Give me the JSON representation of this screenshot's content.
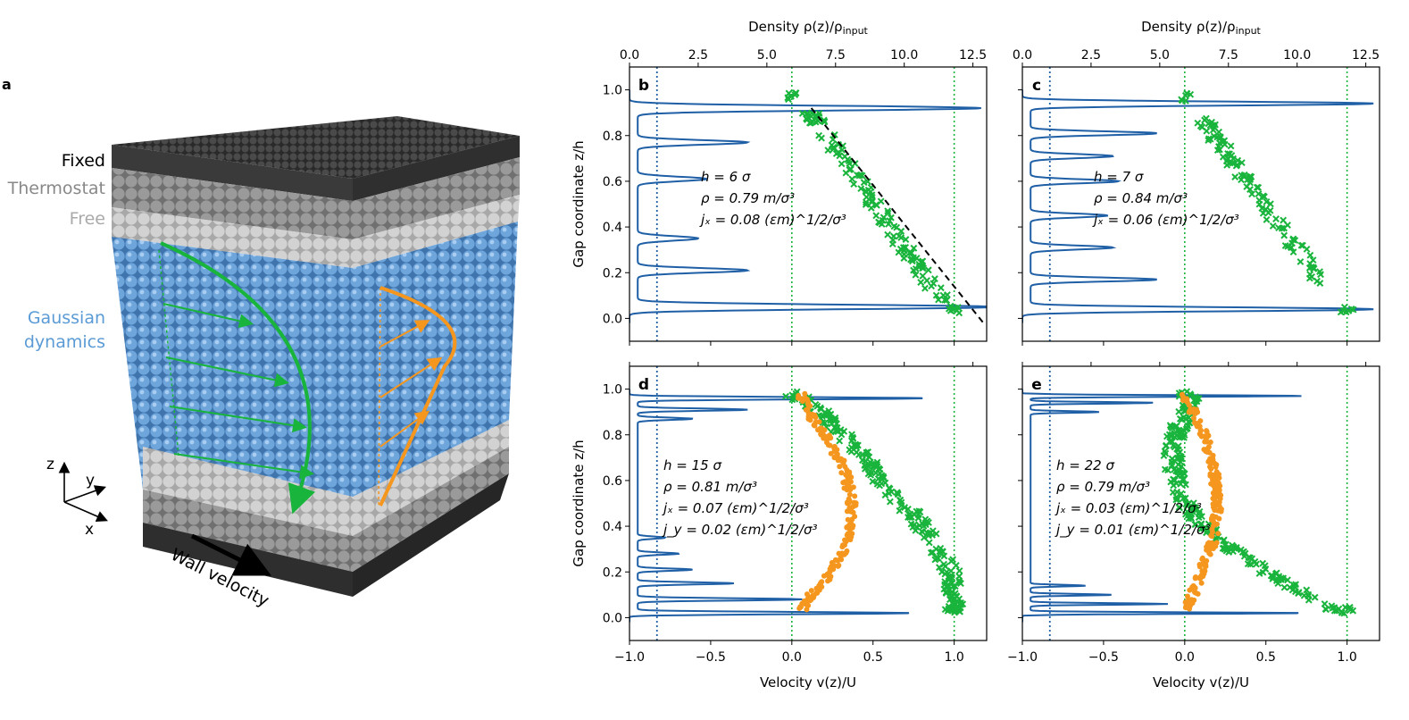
{
  "panel_a": {
    "label": "a",
    "layers": {
      "fixed": "Fixed",
      "thermostat": "Thermostat",
      "free": "Free",
      "gaussian_1": "Gaussian",
      "gaussian_2": "dynamics"
    },
    "axes": {
      "z": "z",
      "y": "y",
      "x": "x"
    },
    "wall_velocity": "Wall velocity"
  },
  "colors": {
    "blue_line": "#1f5fa6",
    "green": "#19b43c",
    "orange": "#f5961e",
    "dark": "#3a3a3a",
    "thermostat": "#8c8c8c",
    "free": "#c8c8c8",
    "fluid": "#5b9bd5"
  },
  "chart_data": [
    {
      "label": "b",
      "type": "line+scatter",
      "ylabel": "Gap coordinate z/h",
      "top_xlabel": "Density ρ(z)/ρ_input",
      "top_xlim": [
        0,
        13
      ],
      "top_ticks": [
        "0.0",
        "2.5",
        "5.0",
        "7.5",
        "10.0",
        "12.5"
      ],
      "xlim": [
        -1.0,
        1.2
      ],
      "ylim": [
        -0.1,
        1.1
      ],
      "y_ticks": [
        "0.0",
        "0.2",
        "0.4",
        "0.6",
        "0.8",
        "1.0"
      ],
      "annotations": [
        "h = 6 σ",
        "ρ = 0.79 m/σ³",
        "jₓ = 0.08 (εm)^1/2/σ³"
      ],
      "density_peaks": [
        [
          0.05,
          13.0
        ],
        [
          0.21,
          4.0
        ],
        [
          0.35,
          2.2
        ],
        [
          0.61,
          2.5
        ],
        [
          0.77,
          4.0
        ],
        [
          0.92,
          12.5
        ]
      ],
      "density_base": 0.3,
      "density_width": 0.014,
      "velocity_x_profile": [
        [
          0.05,
          0.95
        ],
        [
          0.92,
          0.1
        ]
      ],
      "has_vy": false,
      "show_dashed_fit": true
    },
    {
      "label": "c",
      "type": "line+scatter",
      "top_xlabel": "Density ρ(z)/ρ_input",
      "top_xlim": [
        0,
        13
      ],
      "top_ticks": [
        "0.0",
        "2.5",
        "5.0",
        "7.5",
        "10.0",
        "12.5"
      ],
      "xlim": [
        -1.0,
        1.2
      ],
      "ylim": [
        -0.1,
        1.1
      ],
      "annotations": [
        "h = 7 σ",
        "ρ = 0.84 m/σ³",
        "jₓ = 0.06 (εm)^1/2/σ³"
      ],
      "density_peaks": [
        [
          0.04,
          12.5
        ],
        [
          0.17,
          4.6
        ],
        [
          0.31,
          3.0
        ],
        [
          0.45,
          2.8
        ],
        [
          0.6,
          3.2
        ],
        [
          0.71,
          3.0
        ],
        [
          0.81,
          4.6
        ],
        [
          0.94,
          12.5
        ]
      ],
      "density_base": 0.3,
      "density_width": 0.012,
      "velocity_x_profile": [
        [
          0.15,
          0.85
        ],
        [
          0.88,
          0.1
        ]
      ],
      "has_vy": false,
      "show_dashed_fit": false
    },
    {
      "label": "d",
      "type": "line+scatter",
      "ylabel": "Gap coordinate z/h",
      "xlabel": "Velocity v(z)/U",
      "xlim": [
        -1.0,
        1.2
      ],
      "ylim": [
        -0.1,
        1.1
      ],
      "x_ticks": [
        "−1.0",
        "−0.5",
        "0.0",
        "0.5",
        "1.0"
      ],
      "y_ticks": [
        "0.0",
        "0.2",
        "0.4",
        "0.6",
        "0.8",
        "1.0"
      ],
      "annotations": [
        "h = 15 σ",
        "ρ = 0.81 m/σ³",
        "jₓ = 0.07 (εm)^1/2/σ³",
        "j_y = 0.02 (εm)^1/2/σ³"
      ],
      "density_peaks": [
        [
          0.02,
          10.0
        ],
        [
          0.08,
          6.0
        ],
        [
          0.15,
          3.5
        ],
        [
          0.21,
          2.0
        ],
        [
          0.28,
          1.5
        ],
        [
          0.35,
          1.0
        ],
        [
          0.87,
          2.0
        ],
        [
          0.91,
          4.0
        ],
        [
          0.96,
          10.5
        ]
      ],
      "density_base": 0.3,
      "density_width": 0.007,
      "velocity_x_curve": [
        [
          0.02,
          1.0
        ],
        [
          0.1,
          1.0
        ],
        [
          0.2,
          0.98
        ],
        [
          0.3,
          0.9
        ],
        [
          0.45,
          0.75
        ],
        [
          0.55,
          0.6
        ],
        [
          0.7,
          0.45
        ],
        [
          0.85,
          0.25
        ],
        [
          0.95,
          0.1
        ]
      ],
      "velocity_y_curve": [
        [
          0.02,
          0.05
        ],
        [
          0.1,
          0.12
        ],
        [
          0.2,
          0.25
        ],
        [
          0.35,
          0.35
        ],
        [
          0.5,
          0.37
        ],
        [
          0.65,
          0.33
        ],
        [
          0.8,
          0.2
        ],
        [
          0.9,
          0.1
        ],
        [
          0.98,
          0.05
        ]
      ],
      "has_vy": true,
      "show_dashed_fit": false
    },
    {
      "label": "e",
      "type": "line+scatter",
      "xlabel": "Velocity v(z)/U",
      "xlim": [
        -1.0,
        1.2
      ],
      "ylim": [
        -0.1,
        1.1
      ],
      "x_ticks": [
        "−1.0",
        "−0.5",
        "0.0",
        "0.5",
        "1.0"
      ],
      "annotations": [
        "h = 22 σ",
        "ρ = 0.79 m/σ³",
        "jₓ = 0.03 (εm)^1/2/σ³",
        "j_y = 0.01 (εm)^1/2/σ³"
      ],
      "density_peaks": [
        [
          0.02,
          10.0
        ],
        [
          0.06,
          5.0
        ],
        [
          0.1,
          3.0
        ],
        [
          0.14,
          2.0
        ],
        [
          0.9,
          2.5
        ],
        [
          0.94,
          4.5
        ],
        [
          0.97,
          10.0
        ]
      ],
      "density_base": 0.3,
      "density_width": 0.005,
      "velocity_x_curve": [
        [
          0.02,
          0.95
        ],
        [
          0.1,
          0.75
        ],
        [
          0.2,
          0.5
        ],
        [
          0.3,
          0.3
        ],
        [
          0.4,
          0.12
        ],
        [
          0.5,
          0.0
        ],
        [
          0.6,
          -0.05
        ],
        [
          0.7,
          -0.08
        ],
        [
          0.8,
          -0.05
        ],
        [
          0.9,
          0.0
        ],
        [
          0.98,
          0.05
        ]
      ],
      "velocity_y_curve": [
        [
          0.02,
          0.0
        ],
        [
          0.1,
          0.05
        ],
        [
          0.2,
          0.1
        ],
        [
          0.35,
          0.18
        ],
        [
          0.5,
          0.2
        ],
        [
          0.65,
          0.18
        ],
        [
          0.8,
          0.12
        ],
        [
          0.9,
          0.05
        ],
        [
          0.98,
          0.0
        ]
      ],
      "has_vy": true,
      "show_dashed_fit": false
    }
  ],
  "axis_titles": {
    "density": "Density ρ(z)/ρ",
    "density_sub": "input",
    "gap": "Gap coordinate z/h",
    "velocity": "Velocity v(z)/U"
  }
}
